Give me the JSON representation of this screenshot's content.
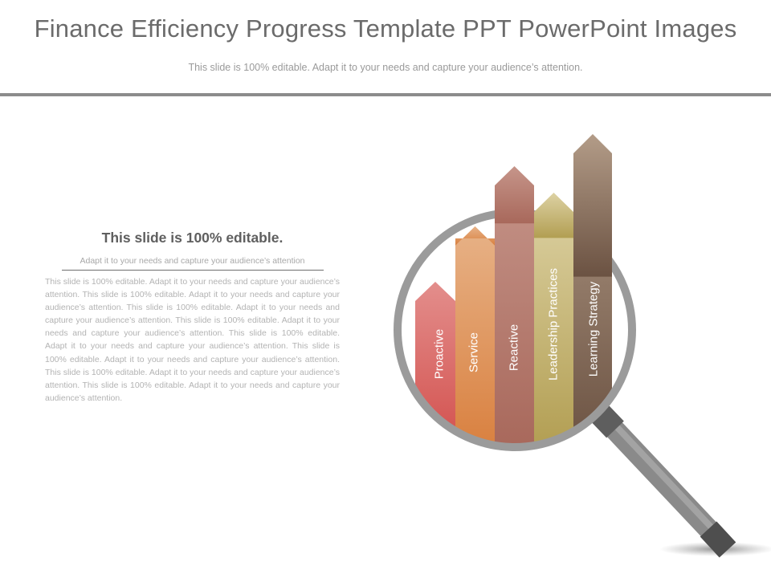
{
  "slide": {
    "title": "Finance Efficiency Progress Template PPT PowerPoint Images",
    "subtitle": "This slide is 100% editable. Adapt it to your needs and capture your audience’s attention."
  },
  "text_panel": {
    "heading": "This slide is 100% editable.",
    "subheading": "Adapt it to your needs and capture your audience’s attention",
    "body": "This slide is 100% editable. Adapt it to your needs and capture your audience’s attention. This slide is 100% editable. Adapt it to your needs and capture your audience’s attention. This slide is 100% editable. Adapt it to your needs and capture your audience’s attention. This slide is 100% editable. Adapt it to your needs and capture your audience’s attention. This slide is 100% editable. Adapt it to your needs and capture your audience’s attention. This slide is 100% editable. Adapt it to your needs and capture your audience’s attention. This slide is 100% editable. Adapt it to your needs and capture your audience’s attention. This slide is 100% editable. Adapt it to your needs and capture your audience’s attention."
  },
  "arrows": [
    {
      "label": "Proactive",
      "color_top": "#e38e8c",
      "color_bottom": "#d45552"
    },
    {
      "label": "Service",
      "color_top": "#e7b287",
      "color_bottom": "#d9803f"
    },
    {
      "label": "Reactive",
      "color_top": "#c6958a",
      "color_bottom": "#a8685b"
    },
    {
      "label": "Leadership Practices",
      "color_top": "#ddd2a4",
      "color_bottom": "#b29e52"
    },
    {
      "label": "Learning Strategy",
      "color_top": "#b39c88",
      "color_bottom": "#6b5242"
    }
  ],
  "magnifier": {
    "rim_color": "#9b9b9b",
    "handle_color": "#8a8a8a"
  }
}
